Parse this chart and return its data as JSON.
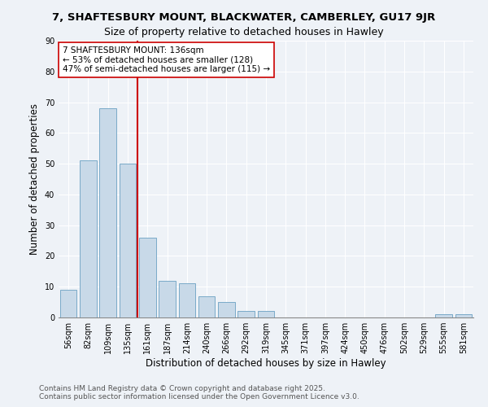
{
  "title": "7, SHAFTESBURY MOUNT, BLACKWATER, CAMBERLEY, GU17 9JR",
  "subtitle": "Size of property relative to detached houses in Hawley",
  "xlabel": "Distribution of detached houses by size in Hawley",
  "ylabel": "Number of detached properties",
  "categories": [
    "56sqm",
    "82sqm",
    "109sqm",
    "135sqm",
    "161sqm",
    "187sqm",
    "214sqm",
    "240sqm",
    "266sqm",
    "292sqm",
    "319sqm",
    "345sqm",
    "371sqm",
    "397sqm",
    "424sqm",
    "450sqm",
    "476sqm",
    "502sqm",
    "529sqm",
    "555sqm",
    "581sqm"
  ],
  "values": [
    9,
    51,
    68,
    50,
    26,
    12,
    11,
    7,
    5,
    2,
    2,
    0,
    0,
    0,
    0,
    0,
    0,
    0,
    0,
    1,
    1
  ],
  "bar_color": "#c8d9e8",
  "bar_edge_color": "#7aaac8",
  "reference_line_color": "#cc0000",
  "annotation_text": "7 SHAFTESBURY MOUNT: 136sqm\n← 53% of detached houses are smaller (128)\n47% of semi-detached houses are larger (115) →",
  "annotation_box_color": "#ffffff",
  "annotation_box_edge_color": "#cc0000",
  "ylim": [
    0,
    90
  ],
  "yticks": [
    0,
    10,
    20,
    30,
    40,
    50,
    60,
    70,
    80,
    90
  ],
  "footer_text": "Contains HM Land Registry data © Crown copyright and database right 2025.\nContains public sector information licensed under the Open Government Licence v3.0.",
  "background_color": "#eef2f7",
  "grid_color": "#ffffff",
  "title_fontsize": 9.5,
  "label_fontsize": 8.5,
  "tick_fontsize": 7,
  "annotation_fontsize": 7.5,
  "footer_fontsize": 6.5
}
